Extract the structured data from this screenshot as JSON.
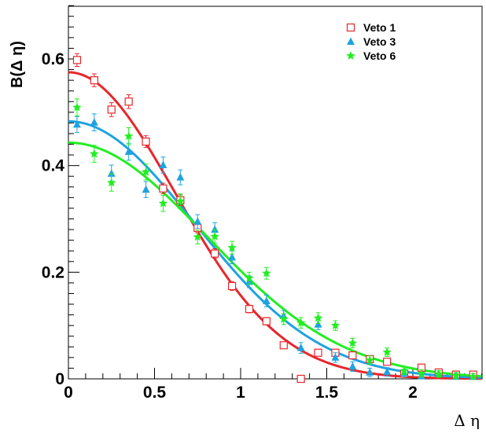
{
  "chart_data": {
    "type": "scatter",
    "title": "",
    "xlabel": "Δ η",
    "ylabel": "B(Δ η)",
    "xlim": [
      0,
      2.4
    ],
    "ylim": [
      0,
      0.7
    ],
    "xticks": [
      0,
      0.5,
      1,
      1.5,
      2
    ],
    "xtick_labels": [
      "0",
      "0.5",
      "1",
      "1.5",
      "2"
    ],
    "yticks": [
      0,
      0.2,
      0.4,
      0.6
    ],
    "ytick_labels": [
      "0",
      "0.2",
      "0.4",
      "0.6"
    ],
    "grid": false,
    "legend_position": "top-right",
    "series": [
      {
        "name": "Veto 1",
        "color": "#e8262b",
        "marker": "open-square",
        "x": [
          0.05,
          0.15,
          0.25,
          0.35,
          0.45,
          0.55,
          0.65,
          0.75,
          0.85,
          0.95,
          1.05,
          1.15,
          1.25,
          1.35,
          1.45,
          1.55,
          1.65,
          1.75,
          1.85,
          1.95,
          2.05,
          2.15,
          2.25,
          2.35
        ],
        "y": [
          0.598,
          0.56,
          0.505,
          0.52,
          0.445,
          0.357,
          0.335,
          0.283,
          0.235,
          0.174,
          0.131,
          0.108,
          0.063,
          0.0,
          0.049,
          0.049,
          0.044,
          0.037,
          0.032,
          0.01,
          0.021,
          0.012,
          0.008,
          0.008
        ],
        "err": [
          0.012,
          0.012,
          0.013,
          0.013,
          0.011,
          0.01,
          0.01,
          0.009,
          0.009,
          0.008,
          0.007,
          0.007,
          0.006,
          0.0,
          0.005,
          0.005,
          0.005,
          0.005,
          0.004,
          0.004,
          0.004,
          0.003,
          0.003,
          0.003
        ],
        "fit": {
          "amplitude": 0.575,
          "sigma": 0.62
        }
      },
      {
        "name": "Veto 3",
        "color": "#1fa3e0",
        "marker": "filled-triangle",
        "x": [
          0.05,
          0.15,
          0.25,
          0.35,
          0.45,
          0.55,
          0.65,
          0.75,
          0.85,
          0.95,
          1.05,
          1.15,
          1.25,
          1.35,
          1.45,
          1.55,
          1.65,
          1.75,
          1.85,
          1.95,
          2.05,
          2.15,
          2.25,
          2.35
        ],
        "y": [
          0.477,
          0.481,
          0.385,
          0.426,
          0.355,
          0.401,
          0.378,
          0.295,
          0.28,
          0.228,
          0.182,
          0.146,
          0.118,
          0.058,
          0.102,
          0.04,
          0.023,
          0.012,
          0.013,
          0.011,
          0.005,
          0.009,
          0.004,
          0.004
        ],
        "err": [
          0.015,
          0.016,
          0.016,
          0.016,
          0.015,
          0.015,
          0.014,
          0.013,
          0.013,
          0.012,
          0.011,
          0.011,
          0.01,
          0.01,
          0.01,
          0.009,
          0.009,
          0.008,
          0.008,
          0.007,
          0.007,
          0.006,
          0.006,
          0.006
        ],
        "fit": {
          "amplitude": 0.483,
          "sigma": 0.73
        }
      },
      {
        "name": "Veto 6",
        "color": "#22ee22",
        "marker": "filled-star",
        "x": [
          0.05,
          0.15,
          0.25,
          0.35,
          0.45,
          0.55,
          0.65,
          0.75,
          0.85,
          0.95,
          1.05,
          1.15,
          1.25,
          1.35,
          1.45,
          1.55,
          1.65,
          1.75,
          1.85,
          1.95,
          2.05,
          2.15,
          2.25,
          2.35
        ],
        "y": [
          0.509,
          0.422,
          0.368,
          0.455,
          0.388,
          0.329,
          0.333,
          0.266,
          0.267,
          0.246,
          0.189,
          0.198,
          0.112,
          0.105,
          0.114,
          0.1,
          0.067,
          0.035,
          0.05,
          0.015,
          0.01,
          0.009,
          0.006,
          0.004
        ],
        "err": [
          0.016,
          0.016,
          0.016,
          0.016,
          0.015,
          0.015,
          0.014,
          0.013,
          0.013,
          0.012,
          0.011,
          0.011,
          0.01,
          0.01,
          0.01,
          0.009,
          0.009,
          0.008,
          0.008,
          0.007,
          0.007,
          0.006,
          0.006,
          0.006
        ],
        "fit": {
          "amplitude": 0.443,
          "sigma": 0.8
        }
      }
    ]
  }
}
